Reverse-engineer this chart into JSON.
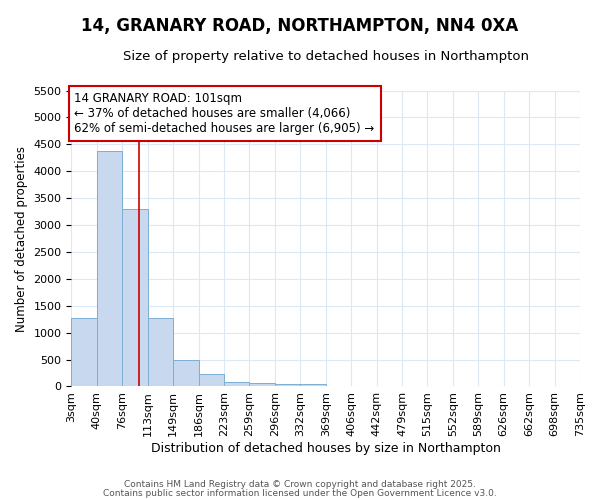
{
  "title": "14, GRANARY ROAD, NORTHAMPTON, NN4 0XA",
  "subtitle": "Size of property relative to detached houses in Northampton",
  "xlabel": "Distribution of detached houses by size in Northampton",
  "ylabel": "Number of detached properties",
  "bar_labels": [
    "3sqm",
    "40sqm",
    "76sqm",
    "113sqm",
    "149sqm",
    "186sqm",
    "223sqm",
    "259sqm",
    "296sqm",
    "332sqm",
    "369sqm",
    "406sqm",
    "442sqm",
    "479sqm",
    "515sqm",
    "552sqm",
    "589sqm",
    "626sqm",
    "662sqm",
    "698sqm",
    "735sqm"
  ],
  "bar_values": [
    1270,
    4380,
    3300,
    1280,
    500,
    230,
    90,
    65,
    50,
    40,
    5,
    5,
    0,
    0,
    0,
    0,
    0,
    0,
    0,
    0
  ],
  "bar_color": "#c8d8ee",
  "bar_edgecolor": "#7bafd4",
  "bar_linewidth": 0.7,
  "ylim": [
    0,
    5500
  ],
  "yticks": [
    0,
    500,
    1000,
    1500,
    2000,
    2500,
    3000,
    3500,
    4000,
    4500,
    5000,
    5500
  ],
  "vline_color": "#cc0000",
  "vline_lw": 1.2,
  "annotation_text": "14 GRANARY ROAD: 101sqm\n← 37% of detached houses are smaller (4,066)\n62% of semi-detached houses are larger (6,905) →",
  "annotation_box_color": "#cc0000",
  "bg_color": "#ffffff",
  "grid_color": "#dce8f5",
  "title_fontsize": 12,
  "subtitle_fontsize": 9.5,
  "xlabel_fontsize": 9,
  "ylabel_fontsize": 8.5,
  "tick_fontsize": 8,
  "footer1": "Contains HM Land Registry data © Crown copyright and database right 2025.",
  "footer2": "Contains public sector information licensed under the Open Government Licence v3.0."
}
